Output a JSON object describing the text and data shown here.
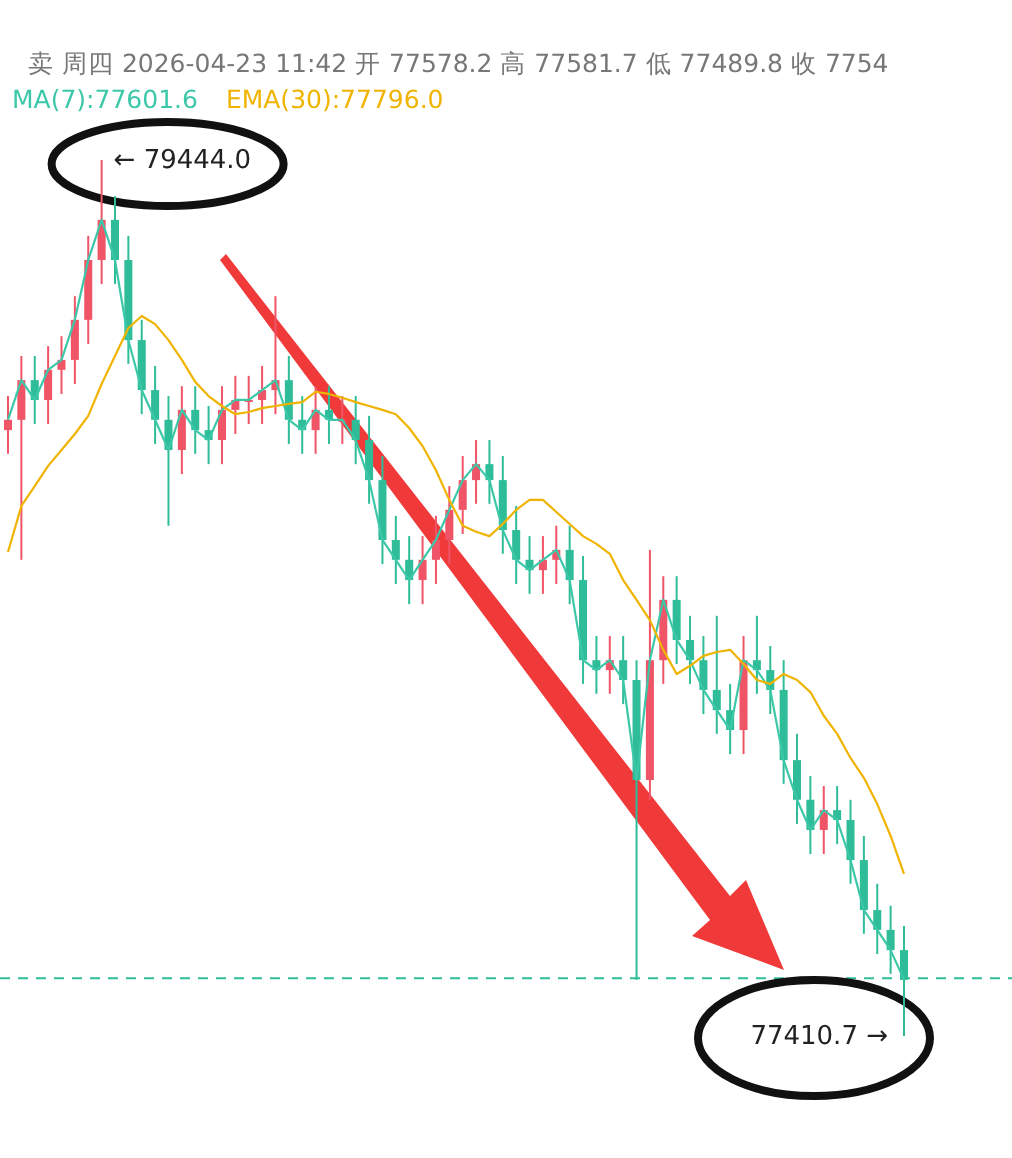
{
  "chart_data": {
    "type": "candlestick",
    "annotations": [
      "卖 周四 2026-04-23 11:42  开 77578.2  高 77581.7  低 77489.8  收 7754",
      "← 79444.0",
      "77410.7 →"
    ],
    "categories": [
      null,
      null,
      null,
      null,
      null,
      null,
      null,
      null,
      null,
      null,
      null,
      null,
      null,
      null,
      null,
      null,
      null,
      null,
      null,
      null,
      null,
      null,
      null,
      null,
      null,
      null,
      null,
      null,
      null,
      null,
      null,
      null,
      null,
      null,
      null,
      null,
      null,
      null,
      null,
      null,
      null,
      null,
      null,
      null,
      null,
      null,
      null,
      null,
      null,
      null,
      null,
      null,
      null,
      null,
      null,
      null,
      null,
      null,
      null,
      null,
      null,
      null,
      null,
      null,
      null,
      null,
      null,
      null
    ],
    "legend": "top left",
    "grid": false,
    "ref_lines": [
      {
        "axis": "y",
        "value": 77545,
        "color": "#2ebd98",
        "line_style": "dashed"
      }
    ],
    "series": [
      {
        "ohlc": [
          [
            78817,
            78896,
            78762,
            78841
          ],
          [
            78841,
            78989,
            78516,
            78933
          ],
          [
            78933,
            78989,
            78831,
            78887
          ],
          [
            78887,
            79012,
            78831,
            78957
          ],
          [
            78957,
            79035,
            78901,
            78980
          ],
          [
            78980,
            79128,
            78924,
            79073
          ],
          [
            79073,
            79268,
            79017,
            79212
          ],
          [
            79212,
            79444.0,
            79156,
            79305
          ],
          [
            79305,
            79360,
            79156,
            79212
          ],
          [
            79212,
            79268,
            78971,
            79026
          ],
          [
            79026,
            79073,
            78854,
            78910
          ],
          [
            78910,
            78966,
            78785,
            78841
          ],
          [
            78841,
            78896,
            78595,
            78771
          ],
          [
            78771,
            78919,
            78715,
            78864
          ],
          [
            78864,
            78919,
            78762,
            78817
          ],
          [
            78817,
            78873,
            78738,
            78794
          ],
          [
            78794,
            78919,
            78738,
            78864
          ],
          [
            78864,
            78943,
            78808,
            78887
          ],
          [
            78887,
            78943,
            78831,
            78887
          ],
          [
            78887,
            78966,
            78831,
            78910
          ],
          [
            78910,
            79128,
            78854,
            78933
          ],
          [
            78933,
            78989,
            78785,
            78841
          ],
          [
            78841,
            78896,
            78762,
            78817
          ],
          [
            78817,
            78919,
            78762,
            78864
          ],
          [
            78864,
            78919,
            78785,
            78841
          ],
          [
            78841,
            78896,
            78785,
            78841
          ],
          [
            78841,
            78896,
            78738,
            78794
          ],
          [
            78794,
            78850,
            78646,
            78701
          ],
          [
            78701,
            78757,
            78506,
            78562
          ],
          [
            78562,
            78618,
            78460,
            78516
          ],
          [
            78516,
            78571,
            78413,
            78469
          ],
          [
            78469,
            78571,
            78413,
            78516
          ],
          [
            78516,
            78618,
            78460,
            78562
          ],
          [
            78562,
            78687,
            78506,
            78632
          ],
          [
            78632,
            78757,
            78576,
            78701
          ],
          [
            78701,
            78794,
            78646,
            78738
          ],
          [
            78738,
            78794,
            78646,
            78701
          ],
          [
            78701,
            78757,
            78530,
            78585
          ],
          [
            78585,
            78641,
            78460,
            78516
          ],
          [
            78516,
            78571,
            78437,
            78492
          ],
          [
            78492,
            78571,
            78437,
            78516
          ],
          [
            78516,
            78595,
            78460,
            78539
          ],
          [
            78539,
            78595,
            78413,
            78469
          ],
          [
            78469,
            78525,
            78228,
            78283
          ],
          [
            78283,
            78339,
            78205,
            78260
          ],
          [
            78260,
            78339,
            78205,
            78283
          ],
          [
            78283,
            78339,
            78181,
            78237
          ],
          [
            78237,
            78283,
            77541,
            78005
          ],
          [
            78005,
            78539,
            77959,
            78283
          ],
          [
            78283,
            78478,
            78228,
            78423
          ],
          [
            78423,
            78478,
            78274,
            78330
          ],
          [
            78330,
            78386,
            78228,
            78283
          ],
          [
            78283,
            78339,
            78158,
            78214
          ],
          [
            78214,
            78386,
            78112,
            78167
          ],
          [
            78167,
            78228,
            78065,
            78121
          ],
          [
            78121,
            78339,
            78065,
            78283
          ],
          [
            78283,
            78386,
            78205,
            78260
          ],
          [
            78260,
            78316,
            78158,
            78214
          ],
          [
            78214,
            78283,
            77996,
            78051
          ],
          [
            78051,
            78112,
            77903,
            77959
          ],
          [
            77959,
            78014,
            77833,
            77889
          ],
          [
            77889,
            77991,
            77833,
            77935
          ],
          [
            77935,
            77991,
            77856,
            77912
          ],
          [
            77912,
            77959,
            77764,
            77819
          ],
          [
            77819,
            77875,
            77648,
            77703
          ],
          [
            77703,
            77764,
            77601,
            77657
          ],
          [
            77657,
            77713,
            77555,
            77610
          ],
          [
            77610,
            77666,
            77410.7,
            77541
          ]
        ],
        "colors": [
          "#ef5467",
          "#ef5467",
          "#2ebd98",
          "#ef5467",
          "#ef5467",
          "#ef5467",
          "#ef5467",
          "#ef5467",
          "#2ebd98",
          "#2ebd98",
          "#2ebd98",
          "#2ebd98",
          "#2ebd98",
          "#ef5467",
          "#2ebd98",
          "#2ebd98",
          "#ef5467",
          "#ef5467",
          "#ef5467",
          "#ef5467",
          "#ef5467",
          "#2ebd98",
          "#2ebd98",
          "#ef5467",
          "#2ebd98",
          "#ef5467",
          "#2ebd98",
          "#2ebd98",
          "#2ebd98",
          "#2ebd98",
          "#2ebd98",
          "#ef5467",
          "#ef5467",
          "#ef5467",
          "#ef5467",
          "#ef5467",
          "#2ebd98",
          "#2ebd98",
          "#2ebd98",
          "#2ebd98",
          "#ef5467",
          "#ef5467",
          "#2ebd98",
          "#2ebd98",
          "#2ebd98",
          "#ef5467",
          "#2ebd98",
          "#2ebd98",
          "#ef5467",
          "#ef5467",
          "#2ebd98",
          "#2ebd98",
          "#2ebd98",
          "#2ebd98",
          "#2ebd98",
          "#ef5467",
          "#2ebd98",
          "#2ebd98",
          "#2ebd98",
          "#2ebd98",
          "#2ebd98",
          "#ef5467",
          "#2ebd98",
          "#2ebd98",
          "#2ebd98",
          "#2ebd98",
          "#2ebd98",
          "#2ebd98"
        ]
      },
      {
        "type": "line",
        "name": "MA(7):77601.6",
        "color": "#3cc8a8",
        "values": [
          78841,
          78933,
          78887,
          78957,
          78980,
          79073,
          79212,
          79305,
          79212,
          79026,
          78910,
          78841,
          78771,
          78864,
          78817,
          78794,
          78864,
          78887,
          78887,
          78910,
          78933,
          78841,
          78817,
          78864,
          78841,
          78841,
          78794,
          78701,
          78562,
          78516,
          78469,
          78516,
          78562,
          78632,
          78701,
          78738,
          78701,
          78585,
          78516,
          78492,
          78516,
          78539,
          78469,
          78283,
          78260,
          78283,
          78237,
          78005,
          78283,
          78423,
          78330,
          78283,
          78214,
          78167,
          78121,
          78283,
          78260,
          78214,
          78051,
          77959,
          77889,
          77935,
          77912,
          77819,
          77703,
          77657,
          77610,
          77541
        ]
      },
      {
        "type": "line",
        "name": "EMA(30):77796.0",
        "color": "#f0b400",
        "values": [
          78534,
          78641,
          78687,
          78734,
          78771,
          78808,
          78850,
          78924,
          78989,
          79054,
          79082,
          79063,
          79026,
          78980,
          78929,
          78896,
          78873,
          78854,
          78859,
          78868,
          78873,
          78878,
          78882,
          78906,
          78901,
          78892,
          78882,
          78873,
          78864,
          78854,
          78822,
          78780,
          78724,
          78655,
          78595,
          78581,
          78571,
          78599,
          78632,
          78655,
          78655,
          78627,
          78599,
          78571,
          78553,
          78530,
          78469,
          78423,
          78376,
          78307,
          78251,
          78270,
          78293,
          78302,
          78307,
          78274,
          78237,
          78228,
          78251,
          78237,
          78209,
          78154,
          78112,
          78056,
          78010,
          77949,
          77875,
          77787
        ]
      }
    ]
  }
}
